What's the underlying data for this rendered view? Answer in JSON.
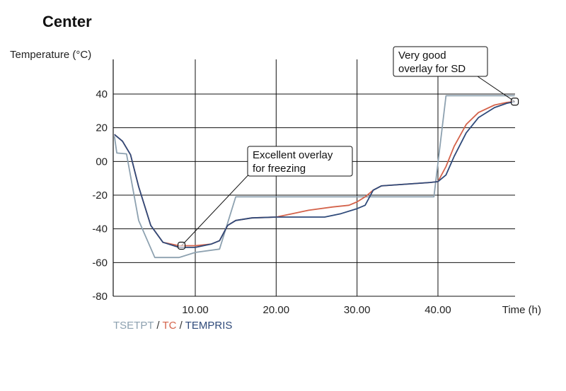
{
  "title": "Center",
  "chart_data": {
    "type": "line",
    "title": "Center",
    "ylabel": "Temperature (°C)",
    "xlabel": "Time (h)",
    "xlim": [
      0,
      50
    ],
    "ylim": [
      -80,
      50
    ],
    "x_ticks": [
      10,
      20,
      30,
      40
    ],
    "x_tick_labels": [
      "10.00",
      "20.00",
      "30.00",
      "40.00"
    ],
    "y_ticks": [
      40,
      20,
      0,
      -20,
      -40,
      -60,
      -80
    ],
    "y_tick_labels": [
      "40",
      "20",
      "00",
      "-20",
      "-40",
      "-60",
      "-80"
    ],
    "grid": true,
    "legend_separator": " / ",
    "series": [
      {
        "name": "TSETPT",
        "color": "#8da1b0",
        "points": [
          [
            0,
            15
          ],
          [
            0.3,
            5
          ],
          [
            1.5,
            4.5
          ],
          [
            3,
            -35
          ],
          [
            5,
            -57
          ],
          [
            8,
            -57
          ],
          [
            10,
            -54
          ],
          [
            13,
            -52
          ],
          [
            15,
            -21
          ],
          [
            20,
            -21
          ],
          [
            30,
            -21
          ],
          [
            35,
            -21
          ],
          [
            39.5,
            -21
          ],
          [
            41,
            39
          ],
          [
            49.5,
            39
          ]
        ]
      },
      {
        "name": "TC",
        "color": "#d4634b",
        "points": [
          [
            0,
            16
          ],
          [
            1,
            12
          ],
          [
            2,
            4
          ],
          [
            3,
            -15
          ],
          [
            4.5,
            -38
          ],
          [
            6,
            -48
          ],
          [
            8,
            -50
          ],
          [
            10,
            -50
          ],
          [
            12,
            -49
          ],
          [
            13,
            -47
          ],
          [
            14,
            -38
          ],
          [
            15,
            -35
          ],
          [
            17,
            -33.5
          ],
          [
            20,
            -33
          ],
          [
            22,
            -31
          ],
          [
            24,
            -29
          ],
          [
            27,
            -27
          ],
          [
            29,
            -26
          ],
          [
            30,
            -24
          ],
          [
            31,
            -21
          ],
          [
            32,
            -17
          ],
          [
            33,
            -14.5
          ],
          [
            36,
            -13.5
          ],
          [
            39,
            -12.5
          ],
          [
            40,
            -12
          ],
          [
            41,
            -3
          ],
          [
            42,
            9
          ],
          [
            43.5,
            22
          ],
          [
            45,
            29
          ],
          [
            47,
            33.5
          ],
          [
            48.5,
            35
          ],
          [
            49.5,
            35.5
          ]
        ]
      },
      {
        "name": "TEMPRIS",
        "color": "#2f4a7a",
        "points": [
          [
            0,
            16
          ],
          [
            1,
            12
          ],
          [
            2,
            4
          ],
          [
            3,
            -15
          ],
          [
            4.5,
            -38
          ],
          [
            6,
            -48
          ],
          [
            8,
            -51
          ],
          [
            10,
            -51
          ],
          [
            12,
            -49
          ],
          [
            13,
            -47
          ],
          [
            14,
            -38
          ],
          [
            15,
            -35
          ],
          [
            17,
            -33.5
          ],
          [
            20,
            -33
          ],
          [
            24,
            -33
          ],
          [
            26,
            -33
          ],
          [
            28,
            -31
          ],
          [
            30,
            -28
          ],
          [
            31,
            -26
          ],
          [
            32,
            -17
          ],
          [
            33,
            -14.5
          ],
          [
            36,
            -13.5
          ],
          [
            39,
            -12.5
          ],
          [
            40,
            -12
          ],
          [
            41,
            -8
          ],
          [
            42,
            3
          ],
          [
            43.5,
            17
          ],
          [
            45,
            26
          ],
          [
            47,
            32
          ],
          [
            48.5,
            34.5
          ],
          [
            49.5,
            35.5
          ]
        ]
      }
    ],
    "annotations": [
      {
        "text_lines": [
          "Excellent overlay",
          "for freezing"
        ],
        "target": [
          8.3,
          -50
        ]
      },
      {
        "text_lines": [
          "Very good",
          "overlay for SD"
        ],
        "target": [
          49.5,
          35.5
        ]
      }
    ]
  }
}
